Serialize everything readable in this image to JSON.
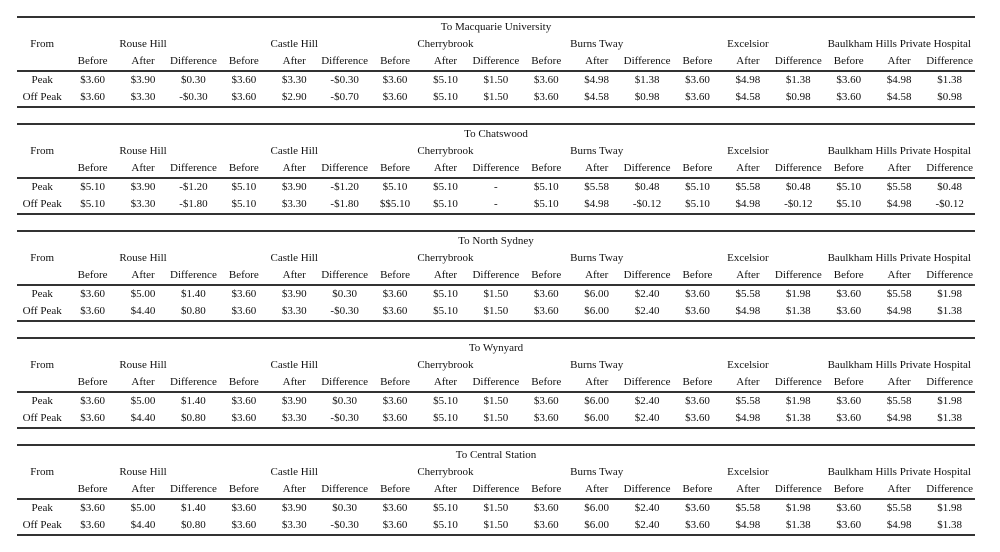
{
  "columns": {
    "from": "From",
    "before": "Before",
    "after": "After",
    "difference": "Difference"
  },
  "origins": [
    "Rouse Hill",
    "Castle Hill",
    "Cherrybrook",
    "Burns Tway",
    "Excelsior",
    "Baulkham Hills Private Hospital"
  ],
  "sections": [
    {
      "destination": "To Macquarie University",
      "rows": [
        {
          "label": "Peak",
          "values": [
            "$3.60",
            "$3.90",
            "$0.30",
            "$3.60",
            "$3.30",
            "-$0.30",
            "$3.60",
            "$5.10",
            "$1.50",
            "$3.60",
            "$4.98",
            "$1.38",
            "$3.60",
            "$4.98",
            "$1.38",
            "$3.60",
            "$4.98",
            "$1.38"
          ]
        },
        {
          "label": "Off Peak",
          "values": [
            "$3.60",
            "$3.30",
            "-$0.30",
            "$3.60",
            "$2.90",
            "-$0.70",
            "$3.60",
            "$5.10",
            "$1.50",
            "$3.60",
            "$4.58",
            "$0.98",
            "$3.60",
            "$4.58",
            "$0.98",
            "$3.60",
            "$4.58",
            "$0.98"
          ]
        }
      ]
    },
    {
      "destination": "To Chatswood",
      "rows": [
        {
          "label": "Peak",
          "values": [
            "$5.10",
            "$3.90",
            "-$1.20",
            "$5.10",
            "$3.90",
            "-$1.20",
            "$5.10",
            "$5.10",
            "-",
            "$5.10",
            "$5.58",
            "$0.48",
            "$5.10",
            "$5.58",
            "$0.48",
            "$5.10",
            "$5.58",
            "$0.48"
          ]
        },
        {
          "label": "Off Peak",
          "values": [
            "$5.10",
            "$3.30",
            "-$1.80",
            "$5.10",
            "$3.30",
            "-$1.80",
            "$$5.10",
            "$5.10",
            "-",
            "$5.10",
            "$4.98",
            "-$0.12",
            "$5.10",
            "$4.98",
            "-$0.12",
            "$5.10",
            "$4.98",
            "-$0.12"
          ]
        }
      ]
    },
    {
      "destination": "To North Sydney",
      "rows": [
        {
          "label": "Peak",
          "values": [
            "$3.60",
            "$5.00",
            "$1.40",
            "$3.60",
            "$3.90",
            "$0.30",
            "$3.60",
            "$5.10",
            "$1.50",
            "$3.60",
            "$6.00",
            "$2.40",
            "$3.60",
            "$5.58",
            "$1.98",
            "$3.60",
            "$5.58",
            "$1.98"
          ]
        },
        {
          "label": "Off Peak",
          "values": [
            "$3.60",
            "$4.40",
            "$0.80",
            "$3.60",
            "$3.30",
            "-$0.30",
            "$3.60",
            "$5.10",
            "$1.50",
            "$3.60",
            "$6.00",
            "$2.40",
            "$3.60",
            "$4.98",
            "$1.38",
            "$3.60",
            "$4.98",
            "$1.38"
          ]
        }
      ]
    },
    {
      "destination": "To Wynyard",
      "rows": [
        {
          "label": "Peak",
          "values": [
            "$3.60",
            "$5.00",
            "$1.40",
            "$3.60",
            "$3.90",
            "$0.30",
            "$3.60",
            "$5.10",
            "$1.50",
            "$3.60",
            "$6.00",
            "$2.40",
            "$3.60",
            "$5.58",
            "$1.98",
            "$3.60",
            "$5.58",
            "$1.98"
          ]
        },
        {
          "label": "Off Peak",
          "values": [
            "$3.60",
            "$4.40",
            "$0.80",
            "$3.60",
            "$3.30",
            "-$0.30",
            "$3.60",
            "$5.10",
            "$1.50",
            "$3.60",
            "$6.00",
            "$2.40",
            "$3.60",
            "$4.98",
            "$1.38",
            "$3.60",
            "$4.98",
            "$1.38"
          ]
        }
      ]
    },
    {
      "destination": "To Central Station",
      "rows": [
        {
          "label": "Peak",
          "values": [
            "$3.60",
            "$5.00",
            "$1.40",
            "$3.60",
            "$3.90",
            "$0.30",
            "$3.60",
            "$5.10",
            "$1.50",
            "$3.60",
            "$6.00",
            "$2.40",
            "$3.60",
            "$5.58",
            "$1.98",
            "$3.60",
            "$5.58",
            "$1.98"
          ]
        },
        {
          "label": "Off Peak",
          "values": [
            "$3.60",
            "$4.40",
            "$0.80",
            "$3.60",
            "$3.30",
            "-$0.30",
            "$3.60",
            "$5.10",
            "$1.50",
            "$3.60",
            "$6.00",
            "$2.40",
            "$3.60",
            "$4.98",
            "$1.38",
            "$3.60",
            "$4.98",
            "$1.38"
          ]
        }
      ]
    }
  ]
}
